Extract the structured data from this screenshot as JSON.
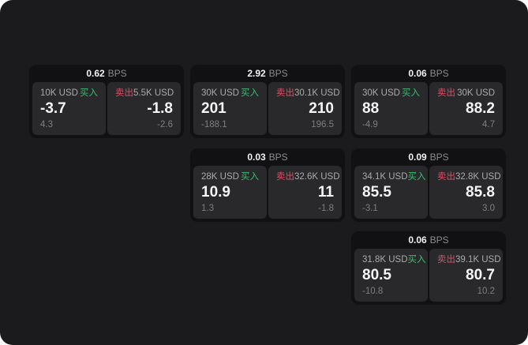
{
  "labels": {
    "bps": "BPS",
    "buy": "买入",
    "sell": "卖出"
  },
  "colors": {
    "buy": "#3dbb75",
    "sell": "#dd4f66",
    "window_bg": "#1b1b1d",
    "card_bg": "#111113",
    "panel_bg": "#29292b"
  },
  "cards": [
    {
      "col": 1,
      "row": 1,
      "bps": "0.62",
      "buy": {
        "notional": "10K USD",
        "price": "-3.7",
        "change": "4.3"
      },
      "sell": {
        "notional": "5.5K USD",
        "price": "-1.8",
        "change": "-2.6"
      }
    },
    {
      "col": 2,
      "row": 1,
      "bps": "2.92",
      "buy": {
        "notional": "30K USD",
        "price": "201",
        "change": "-188.1"
      },
      "sell": {
        "notional": "30.1K USD",
        "price": "210",
        "change": "196.5"
      }
    },
    {
      "col": 3,
      "row": 1,
      "bps": "0.06",
      "buy": {
        "notional": "30K USD",
        "price": "88",
        "change": "-4.9"
      },
      "sell": {
        "notional": "30K USD",
        "price": "88.2",
        "change": "4.7"
      }
    },
    {
      "col": 2,
      "row": 2,
      "bps": "0.03",
      "buy": {
        "notional": "28K USD",
        "price": "10.9",
        "change": "1.3"
      },
      "sell": {
        "notional": "32.6K USD",
        "price": "11",
        "change": "-1.8"
      }
    },
    {
      "col": 3,
      "row": 2,
      "bps": "0.09",
      "buy": {
        "notional": "34.1K USD",
        "price": "85.5",
        "change": "-3.1"
      },
      "sell": {
        "notional": "32.8K USD",
        "price": "85.8",
        "change": "3.0"
      }
    },
    {
      "col": 3,
      "row": 3,
      "bps": "0.06",
      "buy": {
        "notional": "31.8K USD",
        "price": "80.5",
        "change": "-10.8"
      },
      "sell": {
        "notional": "39.1K USD",
        "price": "80.7",
        "change": "10.2"
      }
    }
  ]
}
